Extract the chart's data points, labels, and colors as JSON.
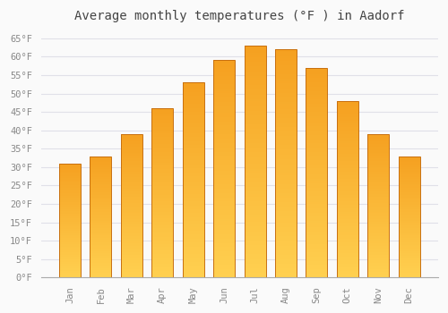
{
  "title": "Average monthly temperatures (°F ) in Aadorf",
  "months": [
    "Jan",
    "Feb",
    "Mar",
    "Apr",
    "May",
    "Jun",
    "Jul",
    "Aug",
    "Sep",
    "Oct",
    "Nov",
    "Dec"
  ],
  "values": [
    31,
    33,
    39,
    46,
    53,
    59,
    63,
    62,
    57,
    48,
    39,
    33
  ],
  "ylim": [
    0,
    68
  ],
  "yticks": [
    0,
    5,
    10,
    15,
    20,
    25,
    30,
    35,
    40,
    45,
    50,
    55,
    60,
    65
  ],
  "bar_color_top": "#FFD050",
  "bar_color_bottom": "#F5A020",
  "bar_edge_color": "#C87010",
  "background_color": "#FAFAFA",
  "grid_color": "#E0E0E8",
  "title_color": "#444444",
  "tick_color": "#888888",
  "title_fontsize": 10,
  "tick_fontsize": 7.5,
  "bar_width": 0.7
}
